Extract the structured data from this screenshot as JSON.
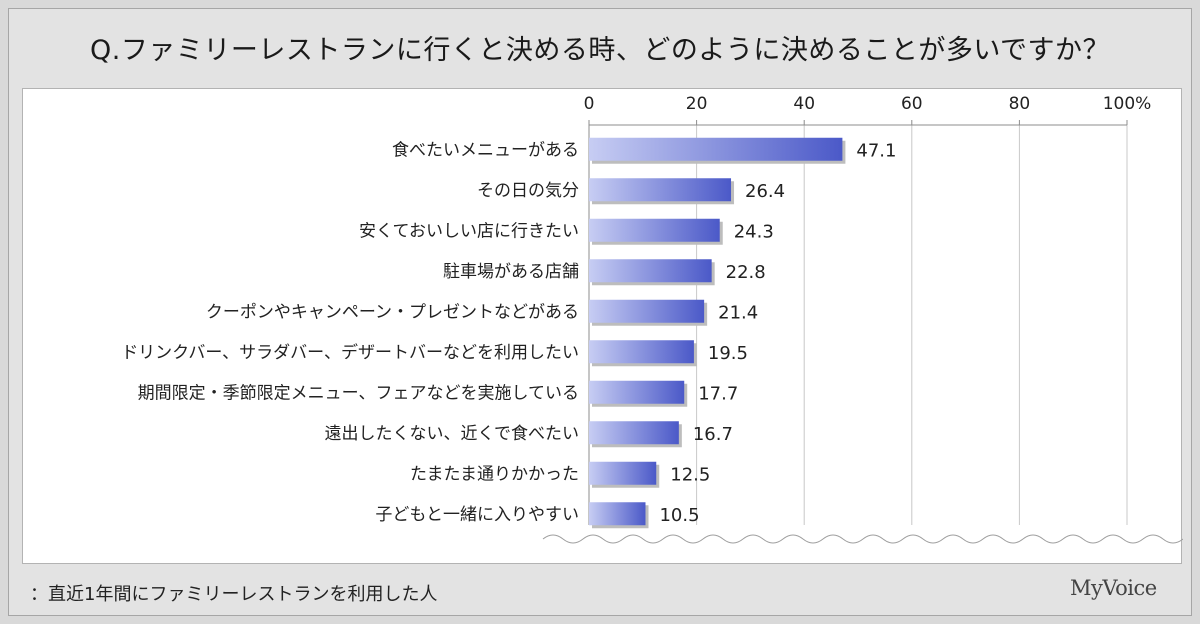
{
  "title": "Q.ファミリーレストランに行くと決める時、どのように決めることが多いですか？",
  "footnote": "：直近1年間にファミリーレストランを利用した人",
  "brand": "MyVoice",
  "colors": {
    "bar_light": "#c7cdf3",
    "bar_dark": "#4b59c8",
    "grid": "#c8c8c8",
    "axis": "#8c8c8c"
  },
  "chart_data": {
    "type": "bar",
    "orientation": "horizontal",
    "categories": [
      "食べたいメニューがある",
      "その日の気分",
      "安くておいしい店に行きたい",
      "駐車場がある店舗",
      "クーポンやキャンペーン・プレゼントなどがある",
      "ドリンクバー、サラダバー、デザートバーなどを利用したい",
      "期間限定・季節限定メニュー、フェアなどを実施している",
      "遠出したくない、近くで食べたい",
      "たまたま通りかかった",
      "子どもと一緒に入りやすい"
    ],
    "values": [
      47.1,
      26.4,
      24.3,
      22.8,
      21.4,
      19.5,
      17.7,
      16.7,
      12.5,
      10.5
    ],
    "value_labels": [
      "47.1",
      "26.4",
      "24.3",
      "22.8",
      "21.4",
      "19.5",
      "17.7",
      "16.7",
      "12.5",
      "10.5"
    ],
    "xlim": [
      0,
      100
    ],
    "x_ticks": [
      "0",
      "20",
      "40",
      "60",
      "80",
      "100%"
    ],
    "grid": true,
    "axis_position": "top"
  }
}
